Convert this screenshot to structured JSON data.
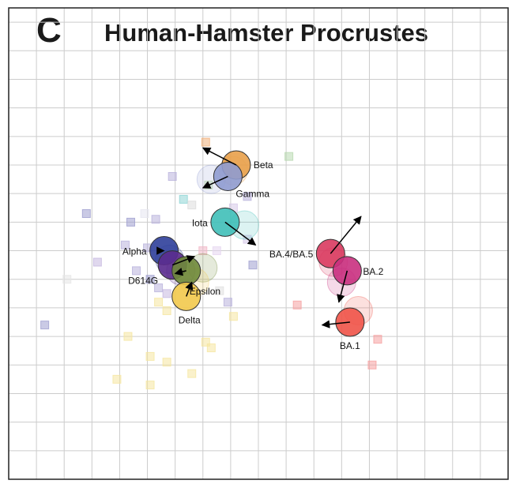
{
  "panel_letter": "C",
  "title": "Human-Hamster Procrustes",
  "chart_data": {
    "type": "scatter",
    "title": "Human-Hamster Procrustes",
    "xlabel": "",
    "ylabel": "",
    "xlim": [
      0,
      18
    ],
    "ylim": [
      0,
      16.5
    ],
    "grid": true,
    "gridline_spacing": 1,
    "variants": [
      {
        "name": "Beta",
        "label": "Beta",
        "color": "#e8a04a",
        "human": [
          8.2,
          11.0
        ],
        "hamster": [
          7.0,
          11.6
        ],
        "ghost": [
          8.1,
          10.8
        ]
      },
      {
        "name": "Gamma",
        "label": "Gamma",
        "color": "#8f9bd0",
        "human": [
          7.9,
          10.6
        ],
        "hamster": [
          7.0,
          10.2
        ],
        "ghost": [
          7.3,
          10.5
        ]
      },
      {
        "name": "Iota",
        "label": "Iota",
        "color": "#3fbfb8",
        "human": [
          7.8,
          9.0
        ],
        "hamster": [
          8.9,
          8.2
        ],
        "ghost": [
          8.5,
          8.9
        ]
      },
      {
        "name": "Alpha",
        "label": "Alpha",
        "color": "#2f3f9a",
        "human": [
          5.6,
          8.0
        ],
        "hamster": [
          5.6,
          8.0
        ],
        "ghost": [
          5.8,
          7.7
        ]
      },
      {
        "name": "D614G",
        "label": "D614G",
        "color": "#5b2b8e",
        "human": [
          5.9,
          7.5
        ],
        "hamster": [
          6.7,
          7.8
        ],
        "ghost": [
          6.2,
          7.3
        ]
      },
      {
        "name": "Epsilon",
        "label": "Epsilon",
        "color": "#6f8a3a",
        "human": [
          6.4,
          7.3
        ],
        "hamster": [
          6.0,
          7.2
        ],
        "ghost": [
          7.0,
          7.4
        ]
      },
      {
        "name": "Delta",
        "label": "Delta",
        "color": "#f2c94c",
        "human": [
          6.4,
          6.4
        ],
        "hamster": [
          6.6,
          6.9
        ],
        "ghost": [
          6.7,
          6.9
        ]
      },
      {
        "name": "BA.4/BA.5",
        "label": "BA.4/BA.5",
        "color": "#d93a5f",
        "human": [
          11.6,
          7.9
        ],
        "hamster": [
          12.7,
          9.2
        ],
        "ghost": [
          11.7,
          7.6
        ]
      },
      {
        "name": "BA.2",
        "label": "BA.2",
        "color": "#c9307f",
        "human": [
          12.2,
          7.3
        ],
        "hamster": [
          11.9,
          6.2
        ],
        "ghost": [
          12.0,
          6.9
        ]
      },
      {
        "name": "BA.1",
        "label": "BA.1",
        "color": "#ef5348",
        "human": [
          12.3,
          5.5
        ],
        "hamster": [
          11.3,
          5.4
        ],
        "ghost": [
          12.6,
          5.9
        ]
      }
    ],
    "background_points": [
      {
        "x": 7.1,
        "y": 11.8,
        "color": "#f0b07a"
      },
      {
        "x": 10.1,
        "y": 11.3,
        "color": "#b8d8b0"
      },
      {
        "x": 5.9,
        "y": 10.6,
        "color": "#b9b3dc"
      },
      {
        "x": 7.2,
        "y": 10.3,
        "color": "#c8e6b8"
      },
      {
        "x": 6.3,
        "y": 9.8,
        "color": "#8fd6d6"
      },
      {
        "x": 8.6,
        "y": 9.9,
        "color": "#b9b3dc"
      },
      {
        "x": 6.6,
        "y": 9.6,
        "color": "#dcdcdc"
      },
      {
        "x": 8.1,
        "y": 9.5,
        "color": "#d6c8e8"
      },
      {
        "x": 2.8,
        "y": 9.3,
        "color": "#9f9fd0"
      },
      {
        "x": 4.4,
        "y": 9.0,
        "color": "#9f9fd0"
      },
      {
        "x": 5.3,
        "y": 9.1,
        "color": "#b9b3dc"
      },
      {
        "x": 4.9,
        "y": 9.3,
        "color": "#e6e6f0"
      },
      {
        "x": 8.6,
        "y": 8.4,
        "color": "#d6c8e8"
      },
      {
        "x": 4.2,
        "y": 8.2,
        "color": "#b9b3dc"
      },
      {
        "x": 5.0,
        "y": 8.1,
        "color": "#b9b3dc"
      },
      {
        "x": 7.0,
        "y": 8.0,
        "color": "#f0b7c7"
      },
      {
        "x": 7.5,
        "y": 8.0,
        "color": "#e6d6f0"
      },
      {
        "x": 3.2,
        "y": 7.6,
        "color": "#c6b8e0"
      },
      {
        "x": 4.6,
        "y": 7.3,
        "color": "#b9b3dc"
      },
      {
        "x": 8.8,
        "y": 7.5,
        "color": "#9f9fd0"
      },
      {
        "x": 5.1,
        "y": 7.0,
        "color": "#9f9fd0"
      },
      {
        "x": 2.1,
        "y": 7.0,
        "color": "#e6e6e6"
      },
      {
        "x": 5.4,
        "y": 6.7,
        "color": "#b9b3dc"
      },
      {
        "x": 5.7,
        "y": 6.5,
        "color": "#c6b8e0"
      },
      {
        "x": 7.6,
        "y": 6.6,
        "color": "#e0e0e0"
      },
      {
        "x": 7.9,
        "y": 6.2,
        "color": "#b9b3dc"
      },
      {
        "x": 5.4,
        "y": 6.2,
        "color": "#f5e6a0"
      },
      {
        "x": 10.4,
        "y": 6.1,
        "color": "#f5a0a0"
      },
      {
        "x": 5.7,
        "y": 5.9,
        "color": "#f5e6a0"
      },
      {
        "x": 8.1,
        "y": 5.7,
        "color": "#f5e6a0"
      },
      {
        "x": 1.3,
        "y": 5.4,
        "color": "#9f9fd0"
      },
      {
        "x": 4.3,
        "y": 5.0,
        "color": "#f5e6a0"
      },
      {
        "x": 7.1,
        "y": 4.8,
        "color": "#f5e6a0"
      },
      {
        "x": 7.3,
        "y": 4.6,
        "color": "#f5e6a0"
      },
      {
        "x": 13.3,
        "y": 4.9,
        "color": "#f5a0a0"
      },
      {
        "x": 5.1,
        "y": 4.3,
        "color": "#f5e6a0"
      },
      {
        "x": 5.7,
        "y": 4.1,
        "color": "#f5e6a0"
      },
      {
        "x": 13.1,
        "y": 4.0,
        "color": "#f5a0a0"
      },
      {
        "x": 6.6,
        "y": 3.7,
        "color": "#f5e6a0"
      },
      {
        "x": 3.9,
        "y": 3.5,
        "color": "#f5e6a0"
      },
      {
        "x": 5.1,
        "y": 3.3,
        "color": "#f5e6a0"
      }
    ]
  }
}
